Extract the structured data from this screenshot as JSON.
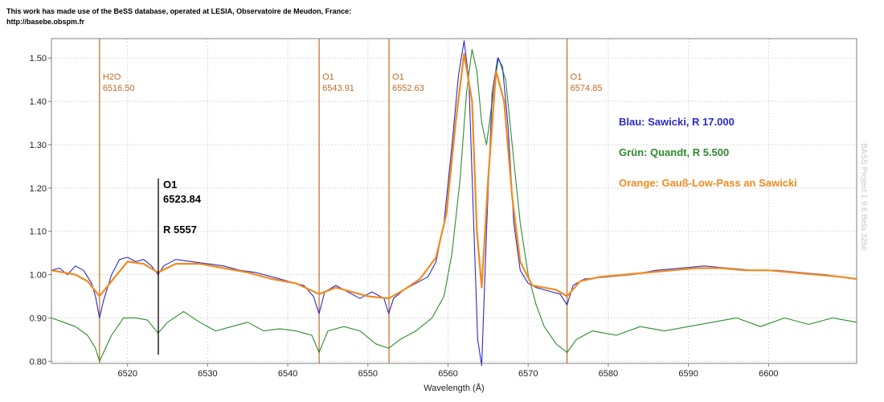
{
  "credit": {
    "line1": "This work has made use of the BeSS database, operated at LESIA, Observatoire de Meudon, France:",
    "line2": "http://basebe.obspm.fr"
  },
  "watermark": "BASS Project 1.9.6 Beta 32bit",
  "chart_data": {
    "type": "line",
    "title": "",
    "xlabel": "Wavelength (Å)",
    "ylabel": "",
    "xlim": [
      6510.5,
      6611
    ],
    "ylim": [
      0.795,
      1.545
    ],
    "x_ticks": [
      6520,
      6530,
      6540,
      6550,
      6560,
      6570,
      6580,
      6590,
      6600
    ],
    "y_ticks": [
      0.8,
      0.9,
      1.0,
      1.1,
      1.2,
      1.3,
      1.4,
      1.5
    ],
    "y_tick_labels": [
      "0.80",
      "0.90",
      "1.00",
      "1.10",
      "1.20",
      "1.30",
      "1.40",
      "1.50"
    ],
    "grid": true,
    "legend_placement": "right",
    "reference_lines": [
      {
        "x": 6516.5,
        "name": "H2O",
        "value_label": "6516.50"
      },
      {
        "x": 6543.91,
        "name": "O1",
        "value_label": "6543.91"
      },
      {
        "x": 6552.63,
        "name": "O1",
        "value_label": "6552.63"
      },
      {
        "x": 6574.85,
        "name": "O1",
        "value_label": "6574.85"
      }
    ],
    "reference_line_color": "#c06a20",
    "annotation": {
      "x": 6523.84,
      "y_range": [
        0.815,
        1.222
      ],
      "lines": [
        "O1",
        "6523.84",
        "R 5557"
      ]
    },
    "series": [
      {
        "name": "Blau: Sawicki, R 17.000",
        "color": "#2b2bc8",
        "x": [
          6510.5,
          6511.5,
          6512.5,
          6513.5,
          6514.5,
          6515.5,
          6516.0,
          6516.5,
          6517.0,
          6518.0,
          6519.0,
          6520.0,
          6521.0,
          6522.0,
          6523.0,
          6523.8,
          6524.5,
          6526.0,
          6528.0,
          6530.0,
          6532.0,
          6534.0,
          6536.0,
          6538.0,
          6540.0,
          6542.0,
          6543.2,
          6543.9,
          6544.6,
          6546.0,
          6547.5,
          6549.0,
          6550.5,
          6552.0,
          6552.6,
          6553.2,
          6554.5,
          6556.0,
          6557.5,
          6558.5,
          6559.5,
          6560.5,
          6561.3,
          6562.0,
          6562.6,
          6563.2,
          6563.7,
          6564.2,
          6564.8,
          6565.5,
          6566.2,
          6566.8,
          6567.5,
          6568.2,
          6569.0,
          6570.0,
          6571.0,
          6572.0,
          6573.0,
          6574.0,
          6574.85,
          6575.6,
          6577.0,
          6580.0,
          6583.0,
          6586.0,
          6589.0,
          6592.0,
          6595.0,
          6598.0,
          6601.0,
          6604.0,
          6607.0,
          6611.0
        ],
        "y": [
          1.01,
          1.015,
          1.0,
          1.02,
          1.01,
          0.98,
          0.95,
          0.9,
          0.94,
          1.0,
          1.035,
          1.04,
          1.03,
          1.035,
          1.02,
          1.0,
          1.02,
          1.035,
          1.03,
          1.025,
          1.02,
          1.01,
          1.005,
          0.995,
          0.985,
          0.975,
          0.95,
          0.91,
          0.96,
          0.975,
          0.96,
          0.945,
          0.96,
          0.945,
          0.91,
          0.945,
          0.965,
          0.98,
          0.995,
          1.03,
          1.12,
          1.3,
          1.46,
          1.54,
          1.45,
          1.12,
          0.85,
          0.79,
          1.1,
          1.42,
          1.5,
          1.48,
          1.34,
          1.12,
          1.01,
          0.98,
          0.97,
          0.965,
          0.96,
          0.955,
          0.93,
          0.975,
          0.99,
          0.995,
          1.0,
          1.01,
          1.015,
          1.02,
          1.015,
          1.01,
          1.01,
          1.005,
          1.0,
          0.99
        ]
      },
      {
        "name": "Grün: Quandt, R 5.500",
        "color": "#2e8b2e",
        "x": [
          6510.5,
          6512.0,
          6513.5,
          6515.0,
          6516.0,
          6516.5,
          6517.0,
          6518.0,
          6519.5,
          6521.0,
          6522.5,
          6523.8,
          6525.0,
          6527.0,
          6529.0,
          6531.0,
          6533.0,
          6535.0,
          6537.0,
          6539.0,
          6541.0,
          6543.0,
          6543.9,
          6545.0,
          6547.0,
          6549.0,
          6551.0,
          6552.6,
          6554.0,
          6556.0,
          6558.0,
          6559.5,
          6560.5,
          6561.5,
          6562.3,
          6563.0,
          6563.6,
          6564.2,
          6564.8,
          6565.5,
          6566.3,
          6567.2,
          6568.0,
          6569.0,
          6570.0,
          6571.0,
          6572.0,
          6573.5,
          6574.85,
          6576.0,
          6578.0,
          6581.0,
          6584.0,
          6587.0,
          6590.0,
          6593.0,
          6596.0,
          6599.0,
          6602.0,
          6605.0,
          6608.0,
          6611.0
        ],
        "y": [
          0.9,
          0.89,
          0.88,
          0.86,
          0.83,
          0.8,
          0.82,
          0.86,
          0.9,
          0.9,
          0.895,
          0.865,
          0.89,
          0.915,
          0.89,
          0.87,
          0.88,
          0.89,
          0.87,
          0.875,
          0.87,
          0.86,
          0.82,
          0.87,
          0.88,
          0.87,
          0.84,
          0.83,
          0.85,
          0.87,
          0.9,
          0.95,
          1.05,
          1.22,
          1.42,
          1.52,
          1.47,
          1.35,
          1.3,
          1.4,
          1.5,
          1.45,
          1.3,
          1.12,
          1.0,
          0.93,
          0.88,
          0.84,
          0.82,
          0.85,
          0.87,
          0.86,
          0.88,
          0.87,
          0.88,
          0.89,
          0.9,
          0.88,
          0.9,
          0.885,
          0.9,
          0.89
        ]
      },
      {
        "name": "Orange: Gauß-Low-Pass an Sawicki",
        "color": "#f28a1e",
        "x": [
          6510.5,
          6512.0,
          6513.5,
          6515.0,
          6516.5,
          6518.0,
          6520.0,
          6522.0,
          6523.8,
          6526.0,
          6529.0,
          6532.0,
          6535.0,
          6538.0,
          6541.0,
          6543.9,
          6546.0,
          6548.0,
          6550.0,
          6552.6,
          6554.5,
          6556.5,
          6558.5,
          6559.8,
          6561.0,
          6562.0,
          6563.0,
          6563.6,
          6564.2,
          6565.0,
          6566.0,
          6567.0,
          6568.0,
          6569.0,
          6570.5,
          6572.0,
          6573.5,
          6574.85,
          6576.5,
          6579.0,
          6582.0,
          6585.0,
          6588.0,
          6591.0,
          6594.0,
          6597.0,
          6600.0,
          6603.0,
          6606.0,
          6609.0,
          6611.0
        ],
        "y": [
          1.01,
          1.005,
          1.0,
          0.985,
          0.95,
          0.985,
          1.03,
          1.025,
          1.005,
          1.025,
          1.025,
          1.015,
          1.005,
          0.99,
          0.98,
          0.955,
          0.97,
          0.96,
          0.95,
          0.945,
          0.965,
          0.99,
          1.04,
          1.14,
          1.36,
          1.51,
          1.4,
          1.1,
          0.97,
          1.22,
          1.47,
          1.4,
          1.18,
          1.03,
          0.975,
          0.97,
          0.965,
          0.95,
          0.985,
          0.995,
          1.0,
          1.005,
          1.01,
          1.015,
          1.015,
          1.01,
          1.01,
          1.005,
          1.0,
          0.995,
          0.99
        ]
      }
    ]
  }
}
